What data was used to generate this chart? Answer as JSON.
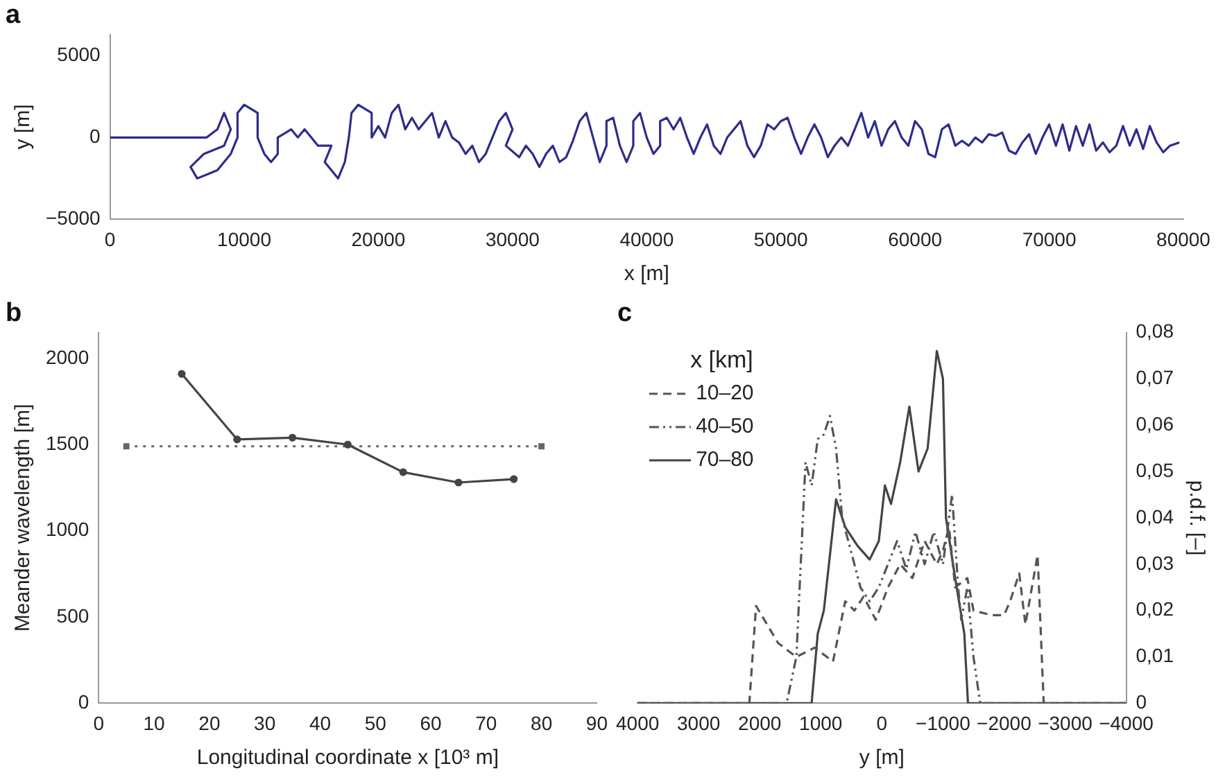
{
  "chart_data": [
    {
      "type": "line",
      "title": "a",
      "xlabel": "x [m]",
      "ylabel": "y [m]",
      "xlim": [
        0,
        80000
      ],
      "xticks": [
        0,
        10000,
        20000,
        30000,
        40000,
        50000,
        60000,
        70000,
        80000
      ],
      "ylim": [
        -5000,
        6300
      ],
      "yticks": [
        {
          "value": -5000,
          "label": "−5000"
        },
        0,
        5000
      ],
      "grid": false,
      "legend": false,
      "marker": "none",
      "line_style": "solid",
      "series": [
        {
          "color": "#2e2c8c",
          "x": [
            0,
            7200,
            8000,
            8500,
            9000,
            8500,
            7000,
            6000,
            6500,
            8000,
            9000,
            9500,
            9500,
            10000,
            11000,
            11000,
            11500,
            12000,
            12500,
            12500,
            13500,
            14000,
            14500,
            15000,
            15500,
            16500,
            16000,
            17000,
            17500,
            17800,
            18000,
            18500,
            19500,
            19500,
            20000,
            20500,
            21000,
            21500,
            22000,
            22500,
            23000,
            23500,
            24000,
            24500,
            25000,
            25500,
            26000,
            26500,
            27000,
            27500,
            28000,
            28500,
            29000,
            29500,
            30000,
            29500,
            30500,
            31000,
            31500,
            32000,
            32500,
            33000,
            33500,
            34000,
            34500,
            35000,
            35500,
            36000,
            36500,
            37000,
            37000,
            37500,
            38000,
            38500,
            39000,
            39000,
            39500,
            40000,
            40500,
            41000,
            41000,
            41500,
            42000,
            42500,
            43000,
            43500,
            44000,
            44500,
            45000,
            45500,
            46000,
            47000,
            47500,
            48000,
            48500,
            49000,
            49500,
            50000,
            50500,
            51000,
            51500,
            52000,
            52500,
            53000,
            53500,
            54000,
            54500,
            55000,
            55500,
            56000,
            56500,
            57000,
            57500,
            58000,
            58500,
            59000,
            59500,
            60000,
            60500,
            61000,
            61500,
            62000,
            62500,
            63000,
            63500,
            64000,
            64500,
            65000,
            65500,
            66000,
            66500,
            67000,
            67500,
            68000,
            68500,
            69000,
            69500,
            70000,
            70500,
            71000,
            71500,
            72000,
            72500,
            73000,
            73500,
            74000,
            74500,
            75000,
            75500,
            76000,
            76500,
            77000,
            77500,
            78000,
            78500,
            79000,
            79700
          ],
          "values": [
            0,
            0,
            500,
            1500,
            500,
            -500,
            -1000,
            -1800,
            -2500,
            -2000,
            -1000,
            0,
            1500,
            2000,
            1500,
            0,
            -1000,
            -1500,
            -1000,
            0,
            500,
            0,
            500,
            0,
            -500,
            -500,
            -1500,
            -2500,
            -1500,
            0,
            1500,
            2000,
            1500,
            0,
            700,
            0,
            1500,
            2000,
            500,
            1200,
            500,
            1000,
            1500,
            0,
            1000,
            0,
            -300,
            -1000,
            -500,
            -1500,
            -1000,
            0,
            1000,
            1500,
            500,
            -500,
            -1200,
            -500,
            -1000,
            -1800,
            -1000,
            -500,
            -1500,
            -1200,
            -200,
            1000,
            1500,
            0,
            -1500,
            -500,
            1000,
            1200,
            -500,
            -1500,
            -500,
            1000,
            1500,
            0,
            -1000,
            -500,
            1000,
            1200,
            500,
            1200,
            0,
            -1000,
            0,
            800,
            -500,
            -1000,
            0,
            1000,
            -500,
            -1200,
            -500,
            800,
            500,
            1000,
            1200,
            0,
            -1000,
            0,
            800,
            0,
            -1200,
            -500,
            0,
            -500,
            500,
            1500,
            0,
            1000,
            -500,
            500,
            1000,
            0,
            -500,
            1000,
            500,
            -1000,
            -1200,
            500,
            800,
            -500,
            -200,
            -500,
            0,
            -300,
            200,
            100,
            300,
            -800,
            -1000,
            -300,
            200,
            -1000,
            0,
            800,
            -500,
            800,
            -800,
            700,
            -500,
            800,
            -800,
            -300,
            -900,
            -500,
            700,
            -500,
            500,
            -700,
            700,
            -300,
            -900,
            -500,
            -300
          ]
        }
      ]
    },
    {
      "type": "line",
      "title": "b",
      "xlabel": "Longitudinal coordinate x [10³ m]",
      "ylabel": "Meander wavelength [m]",
      "xlim": [
        0,
        90
      ],
      "xticks": [
        0,
        10,
        20,
        30,
        40,
        50,
        60,
        70,
        80,
        90
      ],
      "ylim": [
        0,
        2150
      ],
      "yticks": [
        0,
        500,
        1000,
        1500,
        2000
      ],
      "grid": false,
      "legend": false,
      "series": [
        {
          "color": "#444444",
          "marker": "circle",
          "line_style": "solid",
          "x": [
            15,
            25,
            35,
            45,
            55,
            65,
            75
          ],
          "values": [
            1910,
            1530,
            1540,
            1500,
            1340,
            1280,
            1300
          ]
        },
        {
          "color": "#666666",
          "marker": "square",
          "line_style": "dotted",
          "x": [
            5,
            80
          ],
          "values": [
            1490,
            1490
          ]
        }
      ]
    },
    {
      "type": "line",
      "title": "c",
      "xlabel": "y [m]",
      "y2label": "p.d.f. [–]",
      "legend_title": "x [km]",
      "legend": "top left",
      "grid": false,
      "marker": "none",
      "xlim": [
        4000,
        -4000
      ],
      "xticks": [
        4000,
        3000,
        2000,
        1000,
        0,
        {
          "value": -1000,
          "label": "−1000"
        },
        {
          "value": -2000,
          "label": "−2000"
        },
        {
          "value": -3000,
          "label": "−3000"
        },
        {
          "value": -4000,
          "label": "−4000"
        }
      ],
      "y2lim": [
        0,
        0.08
      ],
      "y2ticks": [
        0,
        {
          "value": 0.01,
          "label": "0,01"
        },
        {
          "value": 0.02,
          "label": "0,02"
        },
        {
          "value": 0.03,
          "label": "0,03"
        },
        {
          "value": 0.04,
          "label": "0,04"
        },
        {
          "value": 0.05,
          "label": "0,05"
        },
        {
          "value": 0.06,
          "label": "0,06"
        },
        {
          "value": 0.07,
          "label": "0,07"
        },
        {
          "value": 0.08,
          "label": "0,08"
        }
      ],
      "series": [
        {
          "name": "10–20",
          "axis": "y2",
          "color": "#555555",
          "line_style": "dashed",
          "x": [
            4000,
            2170,
            2060,
            1700,
            1400,
            1100,
            800,
            600,
            450,
            300,
            100,
            -100,
            -300,
            -500,
            -700,
            -900,
            -1000,
            -1100,
            -1200,
            -1400,
            -1500,
            -1800,
            -2000,
            -2100,
            -2250,
            -2350,
            -2550,
            -2650,
            -4000
          ],
          "values": [
            0,
            0,
            0.021,
            0.013,
            0.01,
            0.012,
            0.009,
            0.022,
            0.02,
            0.023,
            0.018,
            0.025,
            0.03,
            0.027,
            0.035,
            0.03,
            0.033,
            0.038,
            0.025,
            0.027,
            0.02,
            0.019,
            0.019,
            0.022,
            0.028,
            0.017,
            0.032,
            0,
            0
          ]
        },
        {
          "name": "40–50",
          "axis": "y2",
          "color": "#555555",
          "line_style": "dashdot",
          "x": [
            4000,
            1560,
            1400,
            1250,
            1150,
            1050,
            950,
            850,
            750,
            650,
            550,
            450,
            350,
            200,
            50,
            -250,
            -400,
            -550,
            -700,
            -850,
            -1000,
            -1150,
            -1250,
            -1300,
            -1400,
            -1500,
            -1610,
            -4000
          ],
          "values": [
            0,
            0,
            0.01,
            0.052,
            0.047,
            0.057,
            0.058,
            0.062,
            0.055,
            0.04,
            0.035,
            0.03,
            0.025,
            0.022,
            0.025,
            0.035,
            0.029,
            0.037,
            0.03,
            0.037,
            0.03,
            0.045,
            0.025,
            0.018,
            0.025,
            0.01,
            0,
            0
          ]
        },
        {
          "name": "70–80",
          "axis": "y2",
          "color": "#444444",
          "line_style": "solid",
          "x": [
            4000,
            1150,
            1050,
            950,
            750,
            600,
            400,
            200,
            50,
            -50,
            -150,
            -300,
            -450,
            -600,
            -750,
            -900,
            -1000,
            -1050,
            -1200,
            -1350,
            -1410,
            -4000
          ],
          "values": [
            0,
            0,
            0.015,
            0.02,
            0.044,
            0.038,
            0.034,
            0.031,
            0.035,
            0.047,
            0.043,
            0.052,
            0.064,
            0.05,
            0.055,
            0.076,
            0.07,
            0.04,
            0.027,
            0.015,
            0,
            0
          ]
        }
      ]
    }
  ]
}
